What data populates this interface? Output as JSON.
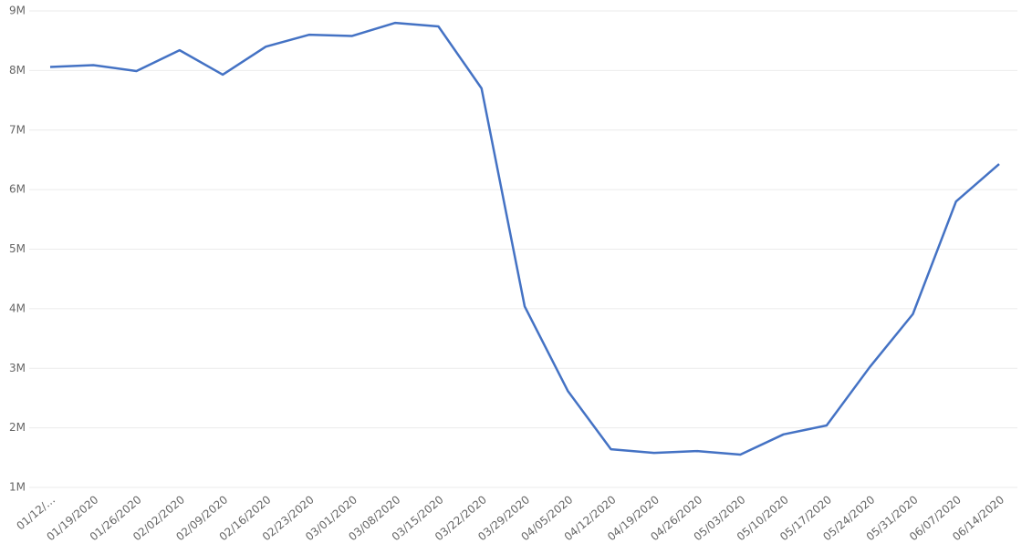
{
  "chart_data": {
    "type": "line",
    "categories": [
      "01/12/…",
      "01/19/2020",
      "01/26/2020",
      "02/02/2020",
      "02/09/2020",
      "02/16/2020",
      "02/23/2020",
      "03/01/2020",
      "03/08/2020",
      "03/15/2020",
      "03/22/2020",
      "03/29/2020",
      "04/05/2020",
      "04/12/2020",
      "04/19/2020",
      "04/26/2020",
      "05/03/2020",
      "05/10/2020",
      "05/17/2020",
      "05/24/2020",
      "05/31/2020",
      "06/07/2020",
      "06/14/2020"
    ],
    "values": [
      8060000,
      8090000,
      7990000,
      8340000,
      7930000,
      8400000,
      8600000,
      8580000,
      8800000,
      8740000,
      7700000,
      4040000,
      2620000,
      1640000,
      1580000,
      1610000,
      1550000,
      1890000,
      2040000,
      3020000,
      3910000,
      5800000,
      6430000
    ],
    "color": "#4472c4",
    "ylim": [
      1000000,
      9000000
    ],
    "yticks": [
      {
        "value": 1000000,
        "label": "1M"
      },
      {
        "value": 2000000,
        "label": "2M"
      },
      {
        "value": 3000000,
        "label": "3M"
      },
      {
        "value": 4000000,
        "label": "4M"
      },
      {
        "value": 5000000,
        "label": "5M"
      },
      {
        "value": 6000000,
        "label": "6M"
      },
      {
        "value": 7000000,
        "label": "7M"
      },
      {
        "value": 8000000,
        "label": "8M"
      },
      {
        "value": 9000000,
        "label": "9M"
      }
    ],
    "grid": true
  }
}
